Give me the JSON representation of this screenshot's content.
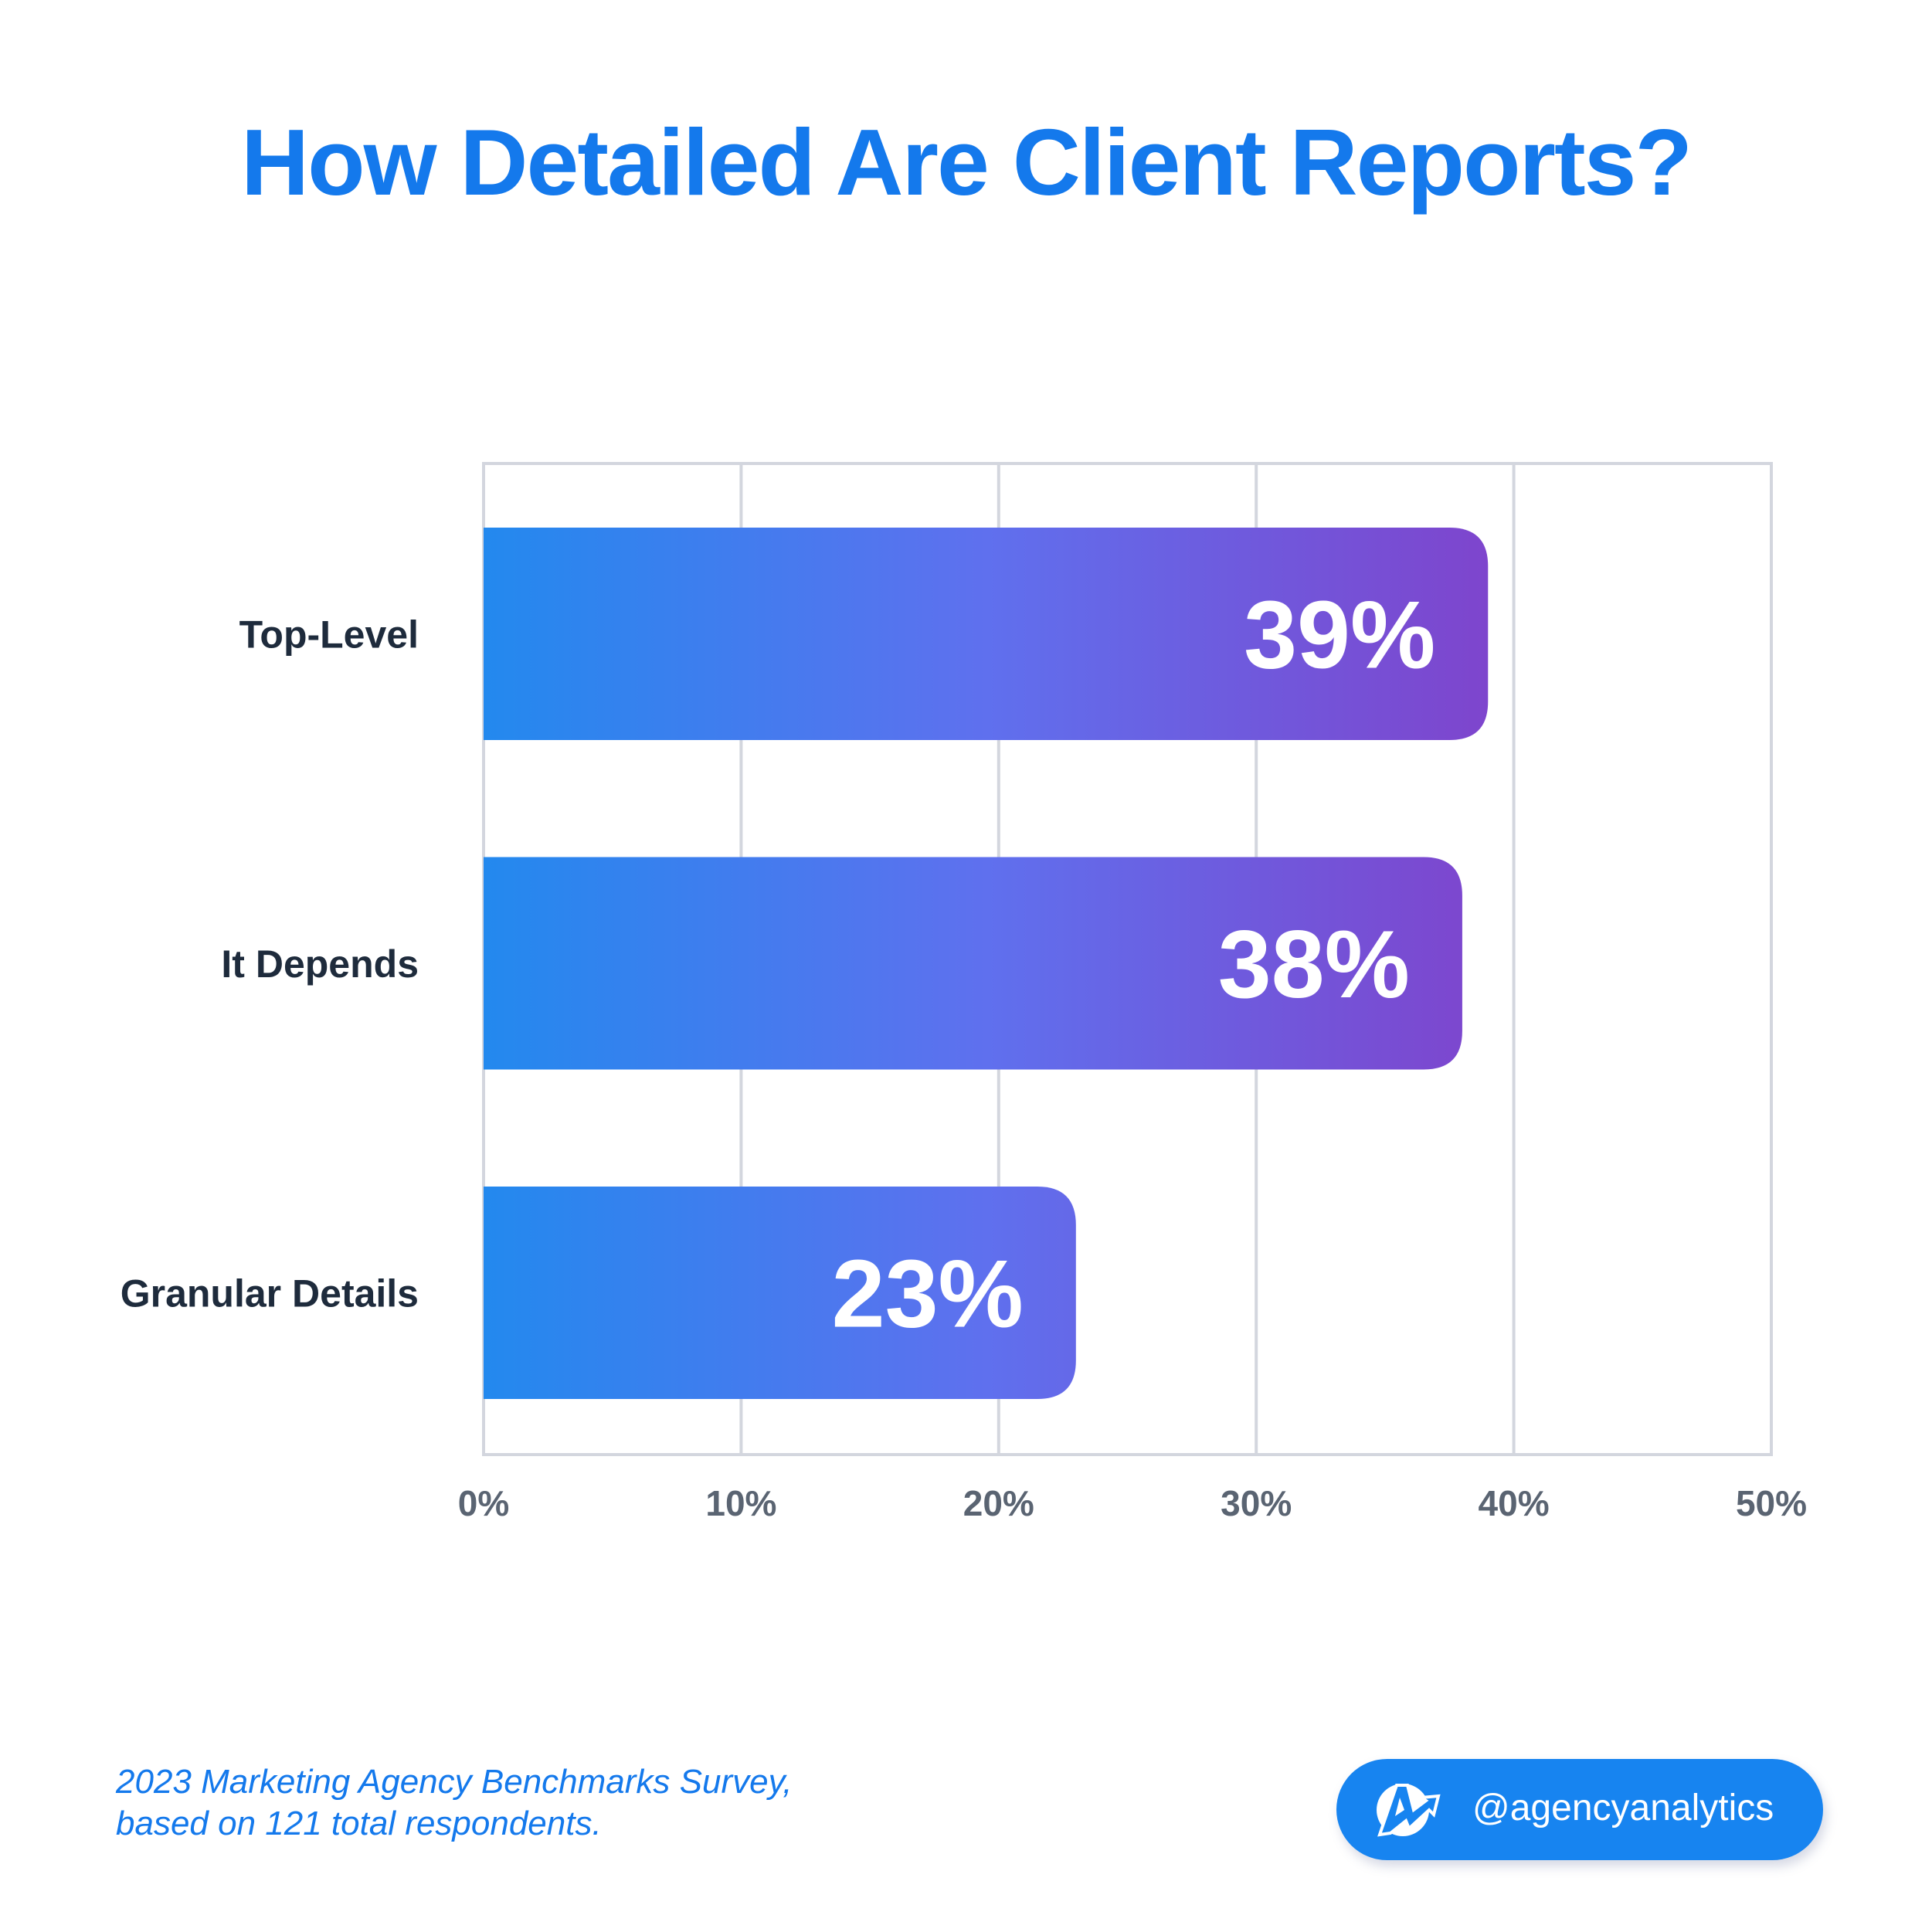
{
  "chart_data": {
    "type": "bar",
    "orientation": "horizontal",
    "title": "How Detailed Are Client Reports?",
    "categories": [
      "Top-Level",
      "It Depends",
      "Granular Details"
    ],
    "values": [
      39,
      38,
      23
    ],
    "value_labels": [
      "39%",
      "38%",
      "23%"
    ],
    "xlabel": "",
    "ylabel": "",
    "xlim": [
      0,
      50
    ],
    "xticks": [
      0,
      10,
      20,
      30,
      40,
      50
    ],
    "xtick_labels": [
      "0%",
      "10%",
      "20%",
      "30%",
      "40%",
      "50%"
    ],
    "grid": true,
    "colors": {
      "gradient_start": "#2389ee",
      "gradient_mid": "#5f70ee",
      "gradient_end": "#7e45cd",
      "grid": "#d3d6de",
      "tick": "#5a6472",
      "category": "#1e2b3c"
    }
  },
  "footer": {
    "source_line1": "2023 Marketing Agency Benchmarks Survey,",
    "source_line2": "based on 121 total respondents."
  },
  "badge": {
    "handle": "@agencyanalytics",
    "icon": "agencyanalytics-logo-icon"
  }
}
